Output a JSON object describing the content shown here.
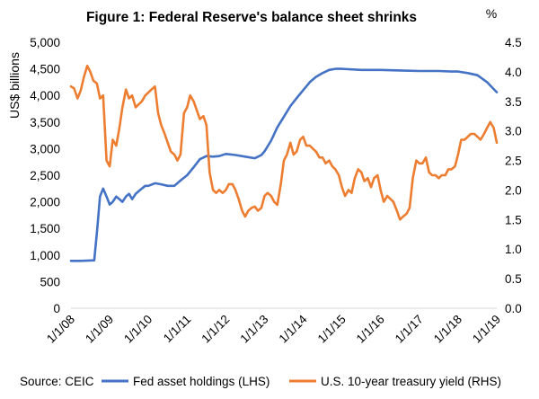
{
  "chart_data": {
    "type": "line",
    "title": "Figure 1: Federal Reserve's balance sheet shrinks",
    "ylabel_left": "US$ billions",
    "ylabel_right": "%",
    "source": "Source: CEIC",
    "ylim_left": [
      0,
      5000
    ],
    "ylim_right": [
      0,
      4.5
    ],
    "yticks_left": [
      "0",
      "500",
      "1,000",
      "1,500",
      "2,000",
      "2,500",
      "3,000",
      "3,500",
      "4,000",
      "4,500",
      "5,000"
    ],
    "yticks_right": [
      "0.0",
      "0.5",
      "1.0",
      "1.5",
      "2.0",
      "2.5",
      "3.0",
      "3.5",
      "4.0",
      "4.5"
    ],
    "xticks": [
      "1/1/08",
      "1/1/09",
      "1/1/10",
      "1/1/11",
      "1/1/12",
      "1/1/13",
      "1/1/14",
      "1/1/15",
      "1/1/16",
      "1/1/17",
      "1/1/18",
      "1/1/19"
    ],
    "xlim": [
      2008.0,
      2019.0
    ],
    "grid": false,
    "legend_position": "bottom",
    "colors": {
      "fed": "#4472C4",
      "yield": "#ED7D31"
    },
    "series": [
      {
        "name": "Fed asset holdings (LHS)",
        "axis": "left",
        "x": [
          2008.0,
          2008.25,
          2008.6,
          2008.68,
          2008.75,
          2008.83,
          2008.92,
          2009.0,
          2009.08,
          2009.17,
          2009.25,
          2009.33,
          2009.42,
          2009.5,
          2009.58,
          2009.67,
          2009.75,
          2009.83,
          2009.92,
          2010.0,
          2010.17,
          2010.33,
          2010.5,
          2010.67,
          2010.83,
          2011.0,
          2011.17,
          2011.33,
          2011.5,
          2011.67,
          2011.83,
          2012.0,
          2012.25,
          2012.5,
          2012.75,
          2012.92,
          2013.0,
          2013.17,
          2013.33,
          2013.5,
          2013.67,
          2013.83,
          2014.0,
          2014.17,
          2014.33,
          2014.5,
          2014.67,
          2014.83,
          2015.0,
          2015.5,
          2016.0,
          2016.5,
          2017.0,
          2017.5,
          2017.83,
          2018.0,
          2018.25,
          2018.5,
          2018.75,
          2018.92,
          2019.0
        ],
        "y": [
          890,
          890,
          900,
          1500,
          2100,
          2250,
          2100,
          1950,
          2000,
          2100,
          2050,
          2000,
          2100,
          2150,
          2050,
          2150,
          2200,
          2250,
          2300,
          2300,
          2350,
          2330,
          2300,
          2300,
          2400,
          2500,
          2650,
          2800,
          2860,
          2850,
          2860,
          2900,
          2880,
          2850,
          2820,
          2880,
          2950,
          3150,
          3400,
          3600,
          3800,
          3950,
          4100,
          4250,
          4350,
          4420,
          4480,
          4500,
          4500,
          4480,
          4480,
          4470,
          4460,
          4460,
          4450,
          4450,
          4420,
          4380,
          4250,
          4120,
          4060
        ]
      },
      {
        "name": "U.S. 10-year treasury yield (RHS)",
        "axis": "right",
        "x": [
          2008.0,
          2008.08,
          2008.17,
          2008.25,
          2008.33,
          2008.42,
          2008.5,
          2008.58,
          2008.67,
          2008.75,
          2008.83,
          2008.92,
          2009.0,
          2009.08,
          2009.17,
          2009.25,
          2009.33,
          2009.42,
          2009.5,
          2009.58,
          2009.67,
          2009.75,
          2009.83,
          2009.92,
          2010.0,
          2010.08,
          2010.17,
          2010.25,
          2010.33,
          2010.42,
          2010.5,
          2010.58,
          2010.67,
          2010.75,
          2010.83,
          2010.92,
          2011.0,
          2011.08,
          2011.17,
          2011.25,
          2011.33,
          2011.42,
          2011.5,
          2011.58,
          2011.67,
          2011.75,
          2011.83,
          2011.92,
          2012.0,
          2012.08,
          2012.17,
          2012.25,
          2012.33,
          2012.42,
          2012.5,
          2012.58,
          2012.67,
          2012.75,
          2012.83,
          2012.92,
          2013.0,
          2013.08,
          2013.17,
          2013.25,
          2013.33,
          2013.42,
          2013.5,
          2013.58,
          2013.67,
          2013.75,
          2013.83,
          2013.92,
          2014.0,
          2014.08,
          2014.17,
          2014.25,
          2014.33,
          2014.42,
          2014.5,
          2014.58,
          2014.67,
          2014.75,
          2014.83,
          2014.92,
          2015.0,
          2015.08,
          2015.17,
          2015.25,
          2015.33,
          2015.42,
          2015.5,
          2015.58,
          2015.67,
          2015.75,
          2015.83,
          2015.92,
          2016.0,
          2016.08,
          2016.17,
          2016.25,
          2016.33,
          2016.42,
          2016.5,
          2016.58,
          2016.67,
          2016.75,
          2016.83,
          2016.92,
          2017.0,
          2017.08,
          2017.17,
          2017.25,
          2017.33,
          2017.42,
          2017.5,
          2017.58,
          2017.67,
          2017.75,
          2017.83,
          2017.92,
          2018.0,
          2018.08,
          2018.17,
          2018.25,
          2018.33,
          2018.42,
          2018.5,
          2018.58,
          2018.67,
          2018.75,
          2018.83,
          2018.92,
          2019.0
        ],
        "y": [
          3.75,
          3.72,
          3.55,
          3.68,
          3.9,
          4.1,
          4.0,
          3.85,
          3.8,
          3.55,
          3.6,
          2.5,
          2.4,
          2.85,
          2.75,
          3.05,
          3.4,
          3.7,
          3.55,
          3.6,
          3.4,
          3.45,
          3.5,
          3.6,
          3.65,
          3.7,
          3.75,
          3.3,
          3.1,
          2.95,
          2.8,
          2.65,
          2.6,
          2.5,
          2.6,
          3.3,
          3.4,
          3.6,
          3.5,
          3.35,
          3.2,
          3.25,
          3.1,
          2.3,
          2.0,
          1.95,
          2.0,
          1.95,
          2.0,
          2.1,
          2.1,
          2.0,
          1.85,
          1.65,
          1.55,
          1.65,
          1.7,
          1.72,
          1.65,
          1.7,
          1.9,
          1.95,
          1.9,
          1.8,
          1.75,
          2.1,
          2.5,
          2.6,
          2.8,
          2.6,
          2.65,
          2.85,
          2.9,
          2.75,
          2.75,
          2.7,
          2.65,
          2.55,
          2.55,
          2.45,
          2.5,
          2.4,
          2.35,
          2.25,
          2.05,
          1.9,
          2.0,
          1.95,
          2.2,
          2.35,
          2.3,
          2.15,
          2.2,
          2.05,
          2.2,
          2.25,
          2.0,
          1.8,
          1.9,
          1.85,
          1.8,
          1.65,
          1.5,
          1.55,
          1.6,
          1.7,
          2.2,
          2.5,
          2.45,
          2.45,
          2.55,
          2.3,
          2.25,
          2.25,
          2.2,
          2.25,
          2.25,
          2.35,
          2.35,
          2.4,
          2.6,
          2.85,
          2.85,
          2.9,
          2.95,
          2.95,
          2.9,
          2.85,
          2.95,
          3.05,
          3.15,
          3.05,
          2.8
        ]
      }
    ]
  }
}
